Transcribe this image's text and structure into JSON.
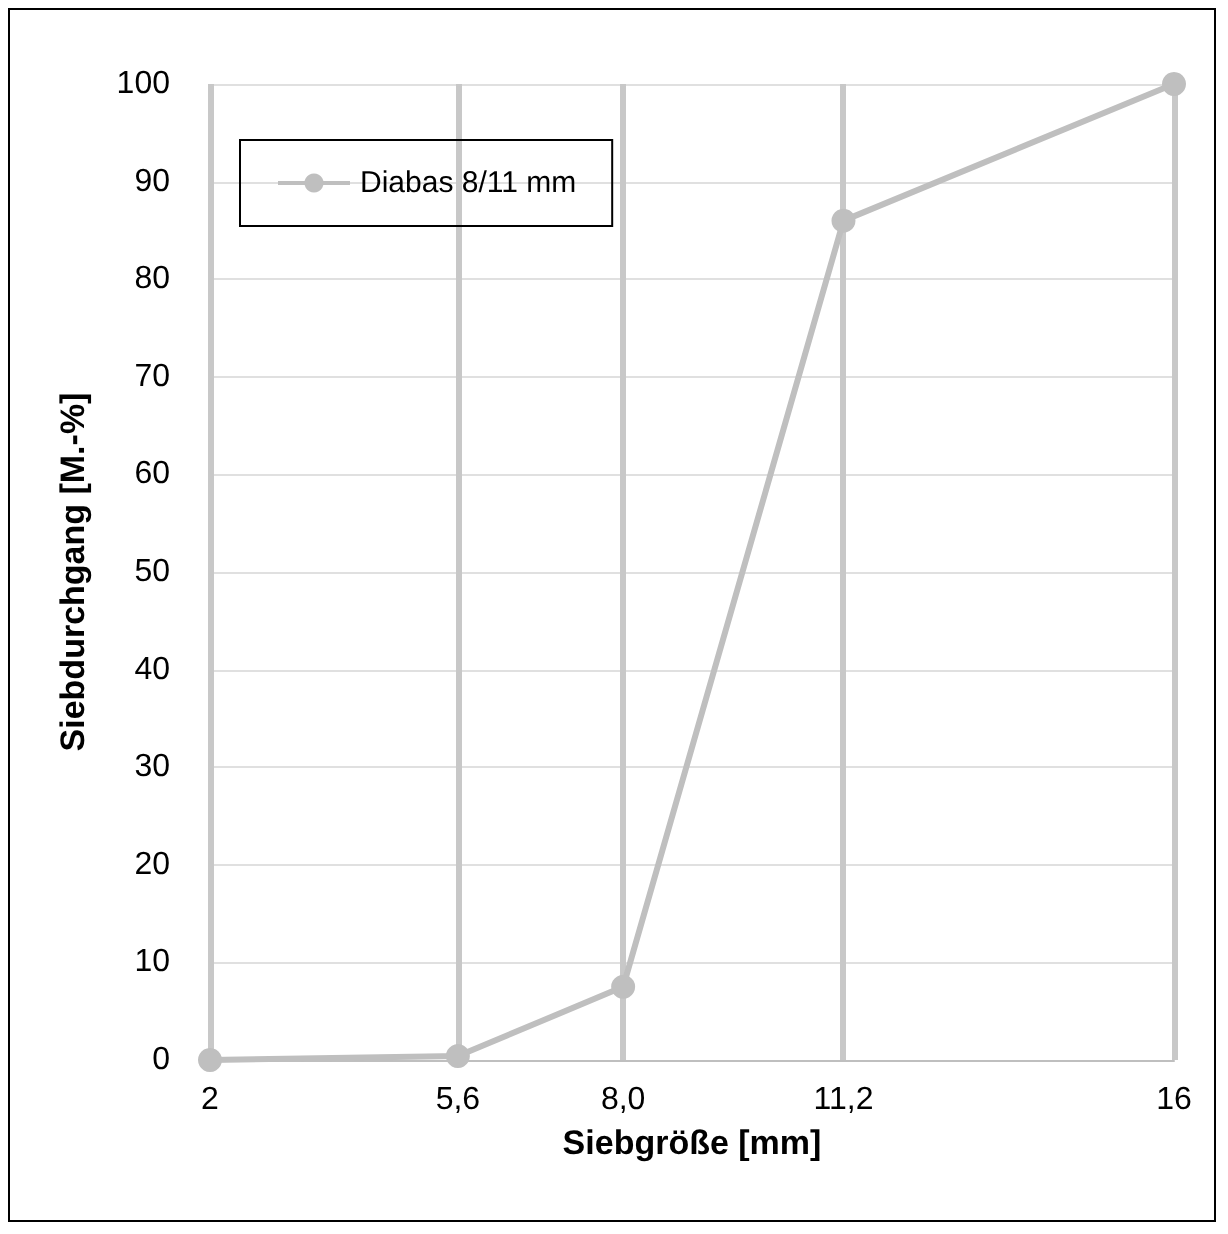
{
  "chart_data": {
    "type": "line",
    "xlabel": "Siebgröße [mm]",
    "ylabel": "Siebdurchgang [M.-%]",
    "series": [
      {
        "name": "Diabas 8/11 mm",
        "color": "#bfbfbf",
        "x": [
          2,
          5.6,
          8.0,
          11.2,
          16
        ],
        "values": [
          0,
          0.4,
          7.5,
          86,
          100
        ]
      }
    ],
    "xlim": [
      2,
      16
    ],
    "xticks": [
      2,
      {
        "value": 5.6,
        "label": "5,6"
      },
      {
        "value": 8.0,
        "label": "8,0"
      },
      {
        "value": 11.2,
        "label": "11,2"
      },
      16
    ],
    "ylim": [
      0,
      100
    ],
    "yticks": [
      0,
      10,
      20,
      30,
      40,
      50,
      60,
      70,
      80,
      90,
      100
    ],
    "grid": true,
    "legend": "top left",
    "marker": "circle",
    "line_style": "solid"
  }
}
